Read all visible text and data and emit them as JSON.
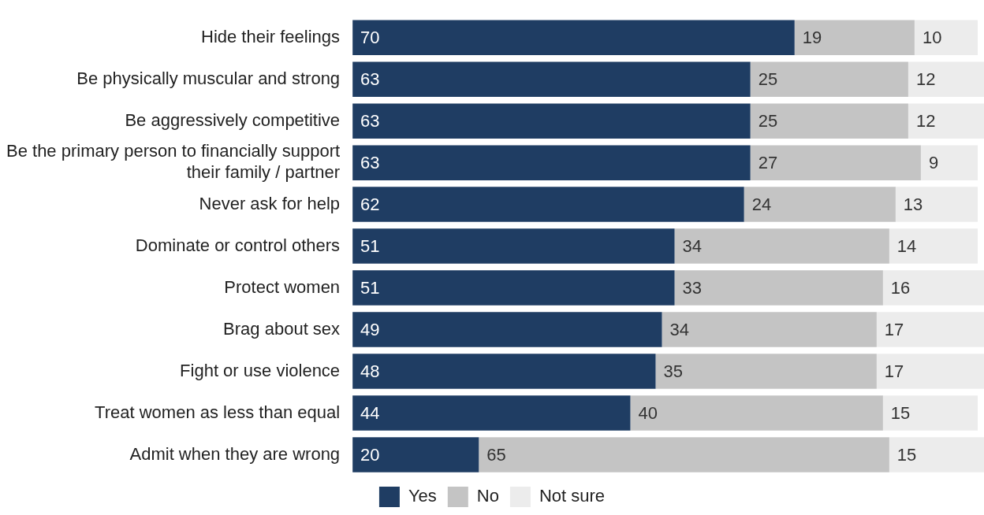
{
  "chart_data": {
    "type": "bar",
    "orientation": "horizontal",
    "stacked": true,
    "data_labels": true,
    "legend": "bottom",
    "grid": false,
    "tick_labels": "y",
    "categories": [
      "Hide their feelings",
      "Be physically muscular and strong",
      "Be aggressively competitive",
      "Be the primary person to financially support their family / partner",
      "Never ask for help",
      "Dominate or control others",
      "Protect women",
      "Brag about sex",
      "Fight or use violence",
      "Treat women as less than equal",
      "Admit when they are wrong"
    ],
    "series": [
      {
        "name": "Yes",
        "color": "#1f3d63",
        "values": [
          70,
          63,
          63,
          63,
          62,
          51,
          51,
          49,
          48,
          44,
          20
        ]
      },
      {
        "name": "No",
        "color": "#c4c4c4",
        "values": [
          19,
          25,
          25,
          27,
          24,
          34,
          33,
          34,
          35,
          40,
          65
        ]
      },
      {
        "name": "Not sure",
        "color": "#ececec",
        "values": [
          10,
          12,
          12,
          9,
          13,
          14,
          16,
          17,
          17,
          15,
          15
        ]
      }
    ]
  }
}
